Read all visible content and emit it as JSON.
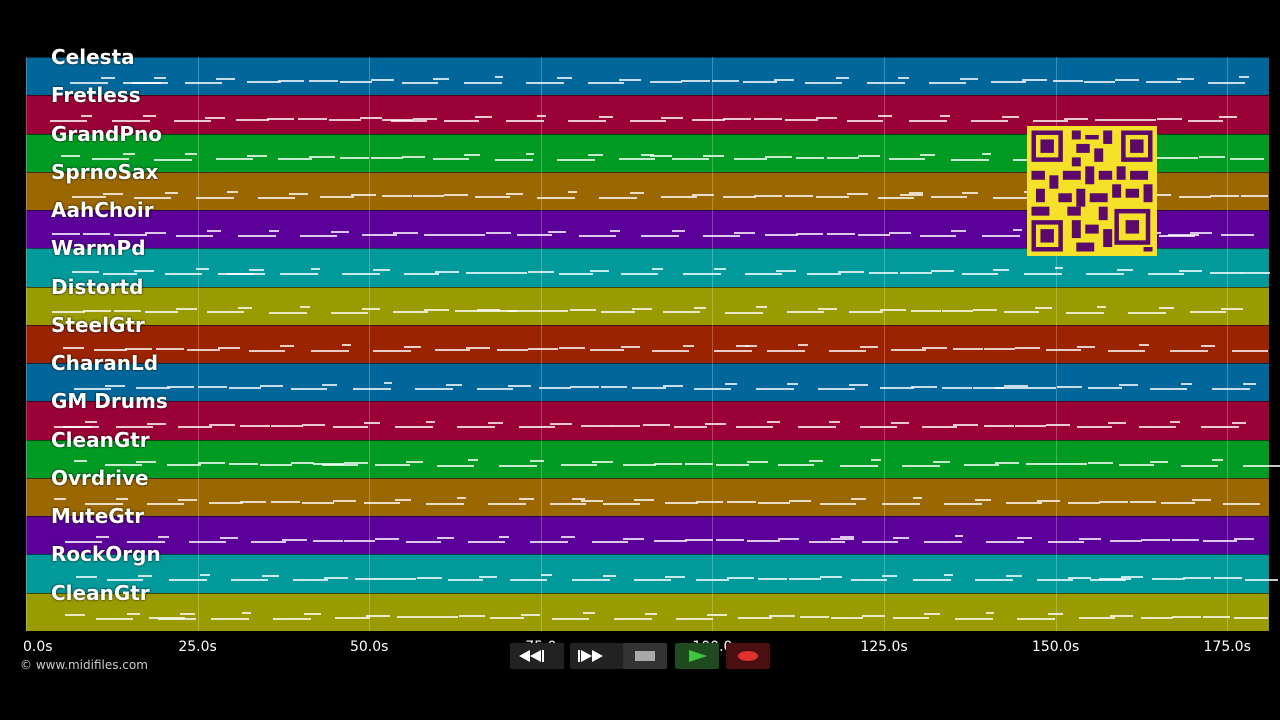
{
  "tracks": [
    {
      "label": "Celesta",
      "color": "#01679a"
    },
    {
      "label": "Fretless",
      "color": "#9a0136"
    },
    {
      "label": "GrandPno",
      "color": "#019a23"
    },
    {
      "label": "SprnoSax",
      "color": "#9a6701"
    },
    {
      "label": "AahChoir",
      "color": "#5b019a"
    },
    {
      "label": "WarmPd",
      "color": "#01999a"
    },
    {
      "label": "Distortd",
      "color": "#9a9a01"
    },
    {
      "label": "SteelGtr",
      "color": "#9a2301"
    },
    {
      "label": "CharanLd",
      "color": "#01679a"
    },
    {
      "label": "GM Drums",
      "color": "#9a0136"
    },
    {
      "label": "CleanGtr",
      "color": "#019a23"
    },
    {
      "label": "Ovrdrive",
      "color": "#9a6701"
    },
    {
      "label": "MuteGtr",
      "color": "#5b019a"
    },
    {
      "label": "RockOrgn",
      "color": "#01999a"
    },
    {
      "label": "CleanGtr",
      "color": "#9a9a01"
    }
  ],
  "timeline": {
    "ticks": [
      "0.0s",
      "25.0s",
      "50.0s",
      "75.0",
      "100.0",
      "125.0s",
      "150.0s",
      "175.0s"
    ]
  },
  "copyright": "© www.midifiles.com",
  "controls": {
    "rewind": "rewind-icon",
    "fast_forward": "fast-forward-icon",
    "stop": "stop-icon",
    "play": "play-icon",
    "record": "record-icon"
  }
}
